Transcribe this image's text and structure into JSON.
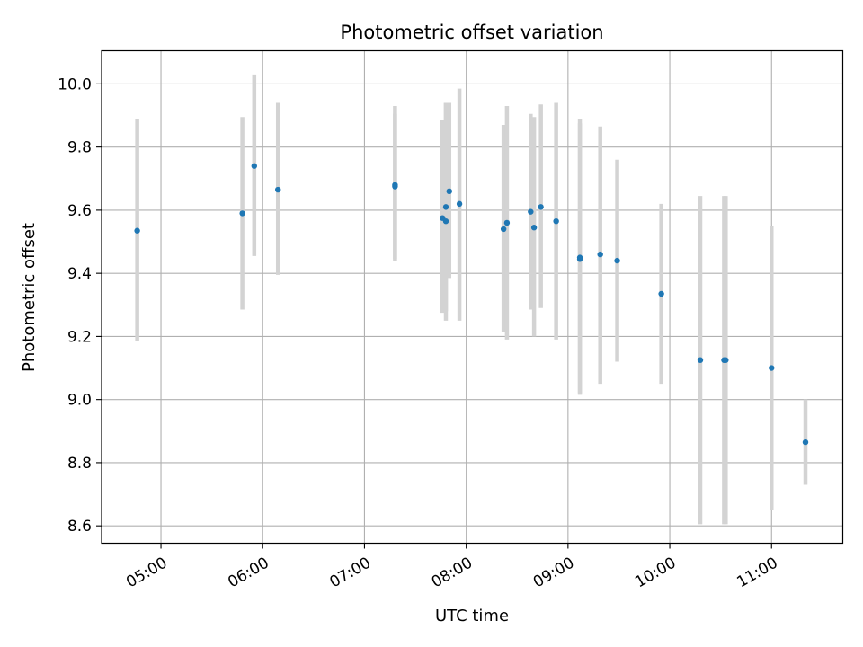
{
  "chart_data": {
    "type": "scatter",
    "title": "Photometric offset variation",
    "xlabel": "UTC time",
    "ylabel": "Photometric offset",
    "xlim": [
      "04:25",
      "11:42"
    ],
    "ylim": [
      8.545,
      10.105
    ],
    "grid": true,
    "x_ticks": [
      "05:00",
      "06:00",
      "07:00",
      "08:00",
      "09:00",
      "10:00",
      "11:00"
    ],
    "y_ticks": [
      "8.6",
      "8.8",
      "9.0",
      "9.2",
      "9.4",
      "9.6",
      "9.8",
      "10.0"
    ],
    "colors": {
      "points": "#1f77b4",
      "error_bars": "#d3d3d3",
      "grid": "#b0b0b0"
    },
    "series": [
      {
        "points": [
          {
            "x": "04:46",
            "y": 9.535,
            "ylow": 9.185,
            "yhigh": 9.89
          },
          {
            "x": "05:48",
            "y": 9.59,
            "ylow": 9.285,
            "yhigh": 9.895
          },
          {
            "x": "05:55",
            "y": 9.74,
            "ylow": 9.455,
            "yhigh": 10.03
          },
          {
            "x": "06:09",
            "y": 9.665,
            "ylow": 9.395,
            "yhigh": 9.94
          },
          {
            "x": "07:18",
            "y": 9.68,
            "ylow": 9.44,
            "yhigh": 9.93
          },
          {
            "x": "07:18",
            "y": 9.675,
            "ylow": 9.445,
            "yhigh": 9.905
          },
          {
            "x": "07:46",
            "y": 9.575,
            "ylow": 9.275,
            "yhigh": 9.885
          },
          {
            "x": "07:48",
            "y": 9.565,
            "ylow": 9.25,
            "yhigh": 9.94
          },
          {
            "x": "07:48",
            "y": 9.61,
            "ylow": 9.28,
            "yhigh": 9.94
          },
          {
            "x": "07:50",
            "y": 9.66,
            "ylow": 9.385,
            "yhigh": 9.94
          },
          {
            "x": "07:56",
            "y": 9.62,
            "ylow": 9.25,
            "yhigh": 9.985
          },
          {
            "x": "08:22",
            "y": 9.54,
            "ylow": 9.215,
            "yhigh": 9.87
          },
          {
            "x": "08:24",
            "y": 9.56,
            "ylow": 9.19,
            "yhigh": 9.93
          },
          {
            "x": "08:38",
            "y": 9.595,
            "ylow": 9.285,
            "yhigh": 9.905
          },
          {
            "x": "08:40",
            "y": 9.545,
            "ylow": 9.2,
            "yhigh": 9.895
          },
          {
            "x": "08:44",
            "y": 9.61,
            "ylow": 9.29,
            "yhigh": 9.935
          },
          {
            "x": "08:53",
            "y": 9.565,
            "ylow": 9.19,
            "yhigh": 9.94
          },
          {
            "x": "09:07",
            "y": 9.45,
            "ylow": 9.015,
            "yhigh": 9.89
          },
          {
            "x": "09:07",
            "y": 9.445,
            "ylow": 9.02,
            "yhigh": 9.875
          },
          {
            "x": "09:19",
            "y": 9.46,
            "ylow": 9.05,
            "yhigh": 9.865
          },
          {
            "x": "09:29",
            "y": 9.44,
            "ylow": 9.12,
            "yhigh": 9.76
          },
          {
            "x": "09:55",
            "y": 9.335,
            "ylow": 9.05,
            "yhigh": 9.62
          },
          {
            "x": "10:18",
            "y": 9.125,
            "ylow": 8.605,
            "yhigh": 9.645
          },
          {
            "x": "10:32",
            "y": 9.125,
            "ylow": 8.605,
            "yhigh": 9.645
          },
          {
            "x": "10:33",
            "y": 9.125,
            "ylow": 8.605,
            "yhigh": 9.645
          },
          {
            "x": "11:00",
            "y": 9.1,
            "ylow": 8.65,
            "yhigh": 9.55
          },
          {
            "x": "11:20",
            "y": 8.865,
            "ylow": 8.73,
            "yhigh": 9.0
          }
        ]
      }
    ]
  }
}
